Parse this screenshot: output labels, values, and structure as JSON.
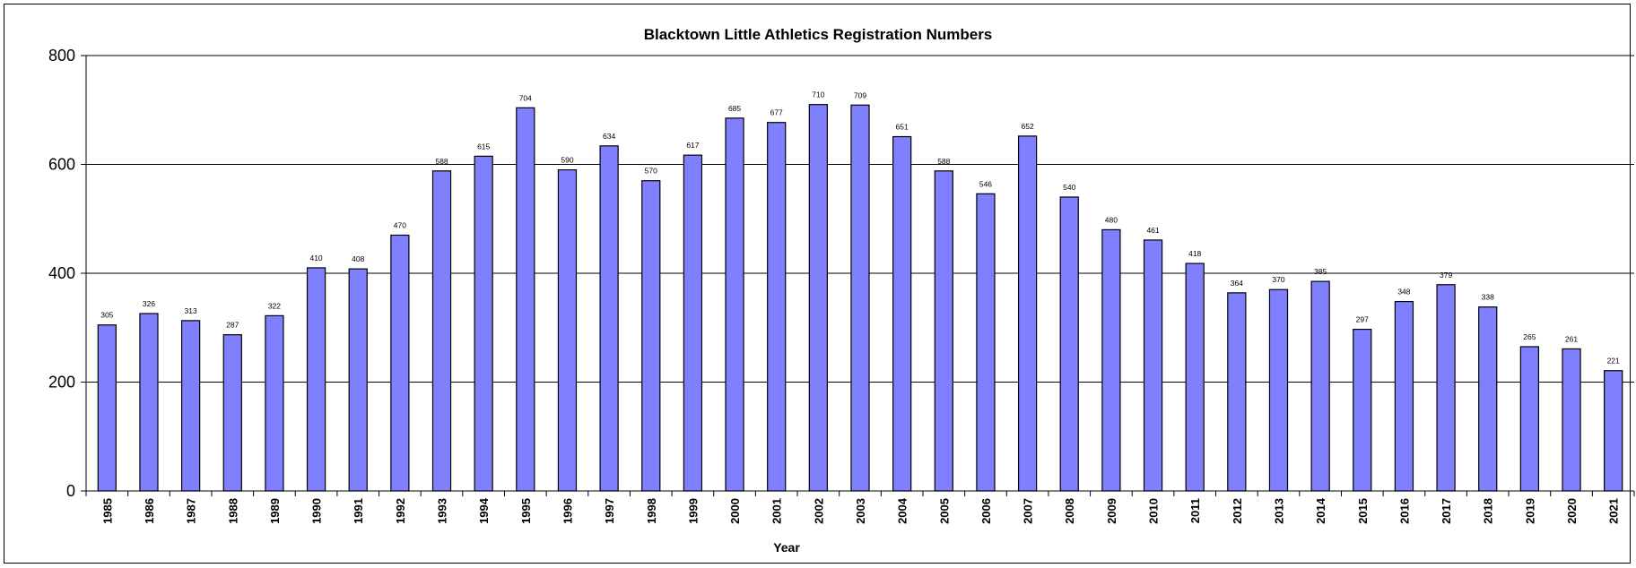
{
  "chart_data": {
    "type": "bar",
    "title": "Blacktown Little Athletics Registration Numbers",
    "xlabel": "Year",
    "ylabel": "",
    "ylim": [
      0,
      800
    ],
    "yticks": [
      0,
      200,
      400,
      600,
      800
    ],
    "grid": true,
    "legend": "none",
    "bar_color": "#8080FF",
    "categories": [
      "1985",
      "1986",
      "1987",
      "1988",
      "1989",
      "1990",
      "1991",
      "1992",
      "1993",
      "1994",
      "1995",
      "1996",
      "1997",
      "1998",
      "1999",
      "2000",
      "2001",
      "2002",
      "2003",
      "2004",
      "2005",
      "2006",
      "2007",
      "2008",
      "2009",
      "2010",
      "2011",
      "2012",
      "2013",
      "2014",
      "2015",
      "2016",
      "2017",
      "2018",
      "2019",
      "2020",
      "2021"
    ],
    "values": [
      305,
      326,
      313,
      287,
      322,
      410,
      408,
      470,
      588,
      615,
      704,
      590,
      634,
      570,
      617,
      685,
      677,
      710,
      709,
      651,
      588,
      546,
      652,
      540,
      480,
      461,
      418,
      364,
      370,
      385,
      297,
      348,
      379,
      338,
      265,
      261,
      221
    ]
  }
}
